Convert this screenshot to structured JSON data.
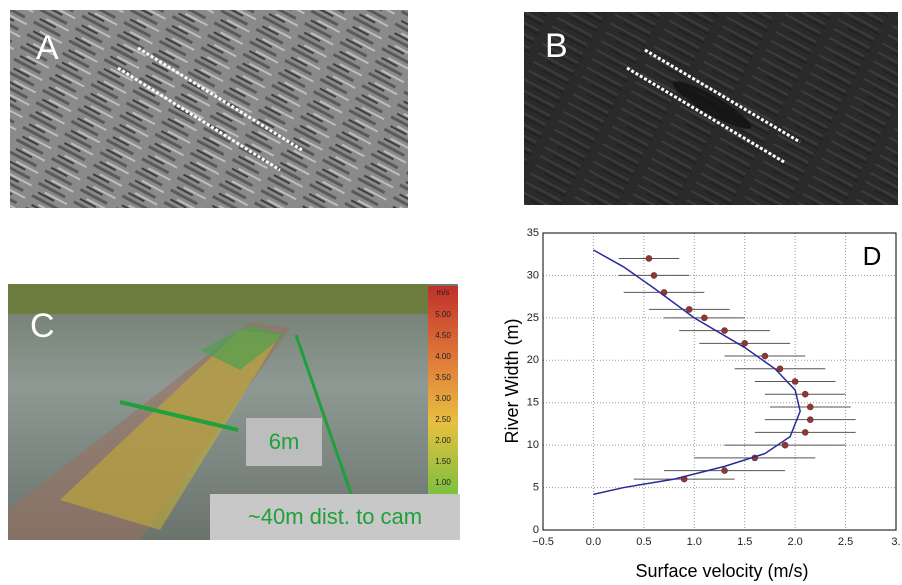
{
  "panels": {
    "A": {
      "label": "A"
    },
    "B": {
      "label": "B"
    },
    "C": {
      "label": "C",
      "width_note": "6m",
      "distance_note": "~40m dist. to cam",
      "colorbar": {
        "unit": "m/s",
        "labels": [
          "5.00",
          "4.50",
          "4.00",
          "3.50",
          "3.00",
          "2.50",
          "2.00",
          "1.50",
          "1.00"
        ]
      }
    }
  },
  "chart_data": {
    "type": "scatter",
    "annotation": "D",
    "xlabel": "Surface velocity (m/s)",
    "ylabel": "River Width (m)",
    "xlim": [
      -0.5,
      3
    ],
    "ylim": [
      0,
      35
    ],
    "xticks": [
      {
        "value": -0.5,
        "label": "−0.5"
      },
      {
        "value": 0,
        "label": "0.0"
      },
      0.5,
      {
        "value": 1,
        "label": "1.0"
      },
      1.5,
      {
        "value": 2,
        "label": "2.0"
      },
      2.5,
      {
        "value": 3,
        "label": "3."
      }
    ],
    "yticks": [
      0,
      5,
      10,
      15,
      20,
      25,
      30,
      35
    ],
    "grid": true,
    "points": {
      "color": "#a0302c",
      "x": [
        0.55,
        0.6,
        0.7,
        0.95,
        1.1,
        1.3,
        1.5,
        1.7,
        1.85,
        2.0,
        2.1,
        2.15,
        2.15,
        2.1,
        1.9,
        1.6,
        1.3,
        0.9
      ],
      "y": [
        32,
        30,
        28,
        26,
        25,
        23.5,
        22,
        20.5,
        19,
        17.5,
        16,
        14.5,
        13,
        11.5,
        10,
        8.5,
        7,
        6
      ],
      "xerr": [
        0.3,
        0.35,
        0.4,
        0.4,
        0.4,
        0.45,
        0.45,
        0.4,
        0.45,
        0.4,
        0.4,
        0.4,
        0.45,
        0.5,
        0.6,
        0.6,
        0.6,
        0.5
      ]
    },
    "curve": {
      "color": "#2a2a9a",
      "x": [
        0,
        0.3,
        0.6,
        1.0,
        1.5,
        1.8,
        2.0,
        2.05,
        1.95,
        1.7,
        1.3,
        0.8,
        0.3,
        0
      ],
      "y": [
        33,
        31,
        28.5,
        25,
        21.5,
        19,
        16.5,
        14,
        11,
        9,
        7.5,
        6,
        5,
        4.2
      ]
    }
  }
}
